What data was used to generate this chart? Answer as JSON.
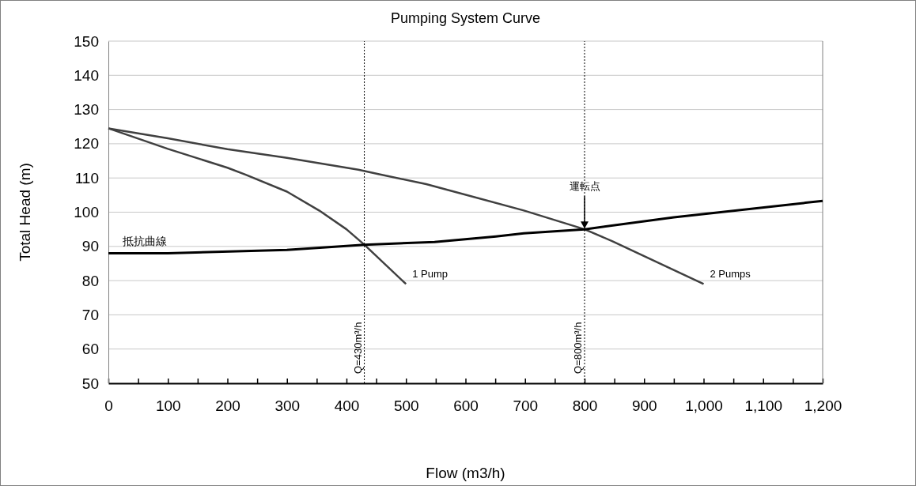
{
  "chart_data": {
    "type": "line",
    "title": "Pumping System Curve",
    "xlabel": "Flow (m3/h)",
    "ylabel": "Total Head (m)",
    "xlim": [
      0,
      1200
    ],
    "ylim": [
      50,
      150
    ],
    "xticks": [
      0,
      {
        "value": 50,
        "label": null
      },
      100,
      {
        "value": 150,
        "label": null
      },
      200,
      {
        "value": 250,
        "label": null
      },
      300,
      {
        "value": 350,
        "label": null
      },
      400,
      {
        "value": 450,
        "label": null
      },
      500,
      {
        "value": 550,
        "label": null
      },
      600,
      {
        "value": 650,
        "label": null
      },
      700,
      {
        "value": 750,
        "label": null
      },
      800,
      {
        "value": 850,
        "label": null
      },
      900,
      {
        "value": 950,
        "label": null
      },
      {
        "value": 1000,
        "label": "1,000"
      },
      {
        "value": 1050,
        "label": null
      },
      {
        "value": 1100,
        "label": "1,100"
      },
      {
        "value": 1150,
        "label": null
      },
      {
        "value": 1200,
        "label": "1,200"
      }
    ],
    "yticks": [
      50,
      60,
      70,
      80,
      90,
      100,
      110,
      120,
      130,
      140,
      150
    ],
    "grid": "y",
    "marker": "none",
    "line_style": "solid",
    "series": [
      {
        "name": "1 Pump",
        "color": "#404040",
        "x": [
          0,
          100,
          200,
          230,
          300,
          354,
          400,
          430,
          500
        ],
        "values": [
          124.5,
          118.5,
          113,
          111,
          106,
          100.5,
          95,
          90.5,
          79
        ]
      },
      {
        "name": "2 Pumps",
        "color": "#404040",
        "x": [
          0,
          100,
          200,
          300,
          420,
          455,
          534,
          698,
          800,
          847,
          1000
        ],
        "values": [
          124.5,
          121.6,
          118.4,
          115.9,
          112.4,
          111.1,
          108.2,
          100.5,
          95,
          91.5,
          79
        ]
      },
      {
        "name": "抵抗曲線",
        "color": "#000000",
        "x": [
          0,
          100,
          300,
          430,
          548,
          651,
          698,
          800,
          950,
          1200
        ],
        "values": [
          88,
          88,
          89,
          90.5,
          91.3,
          92.9,
          93.8,
          95,
          98.5,
          103.3
        ]
      }
    ],
    "ref_lines": [
      {
        "axis": "x",
        "value": 430,
        "label": "Q=430m³/h",
        "line_style": "dotted"
      },
      {
        "axis": "x",
        "value": 800,
        "label": "Q=800m³/h",
        "line_style": "dotted"
      }
    ],
    "annotations": [
      {
        "text": "運転点",
        "x": 800,
        "y": 95
      }
    ]
  }
}
